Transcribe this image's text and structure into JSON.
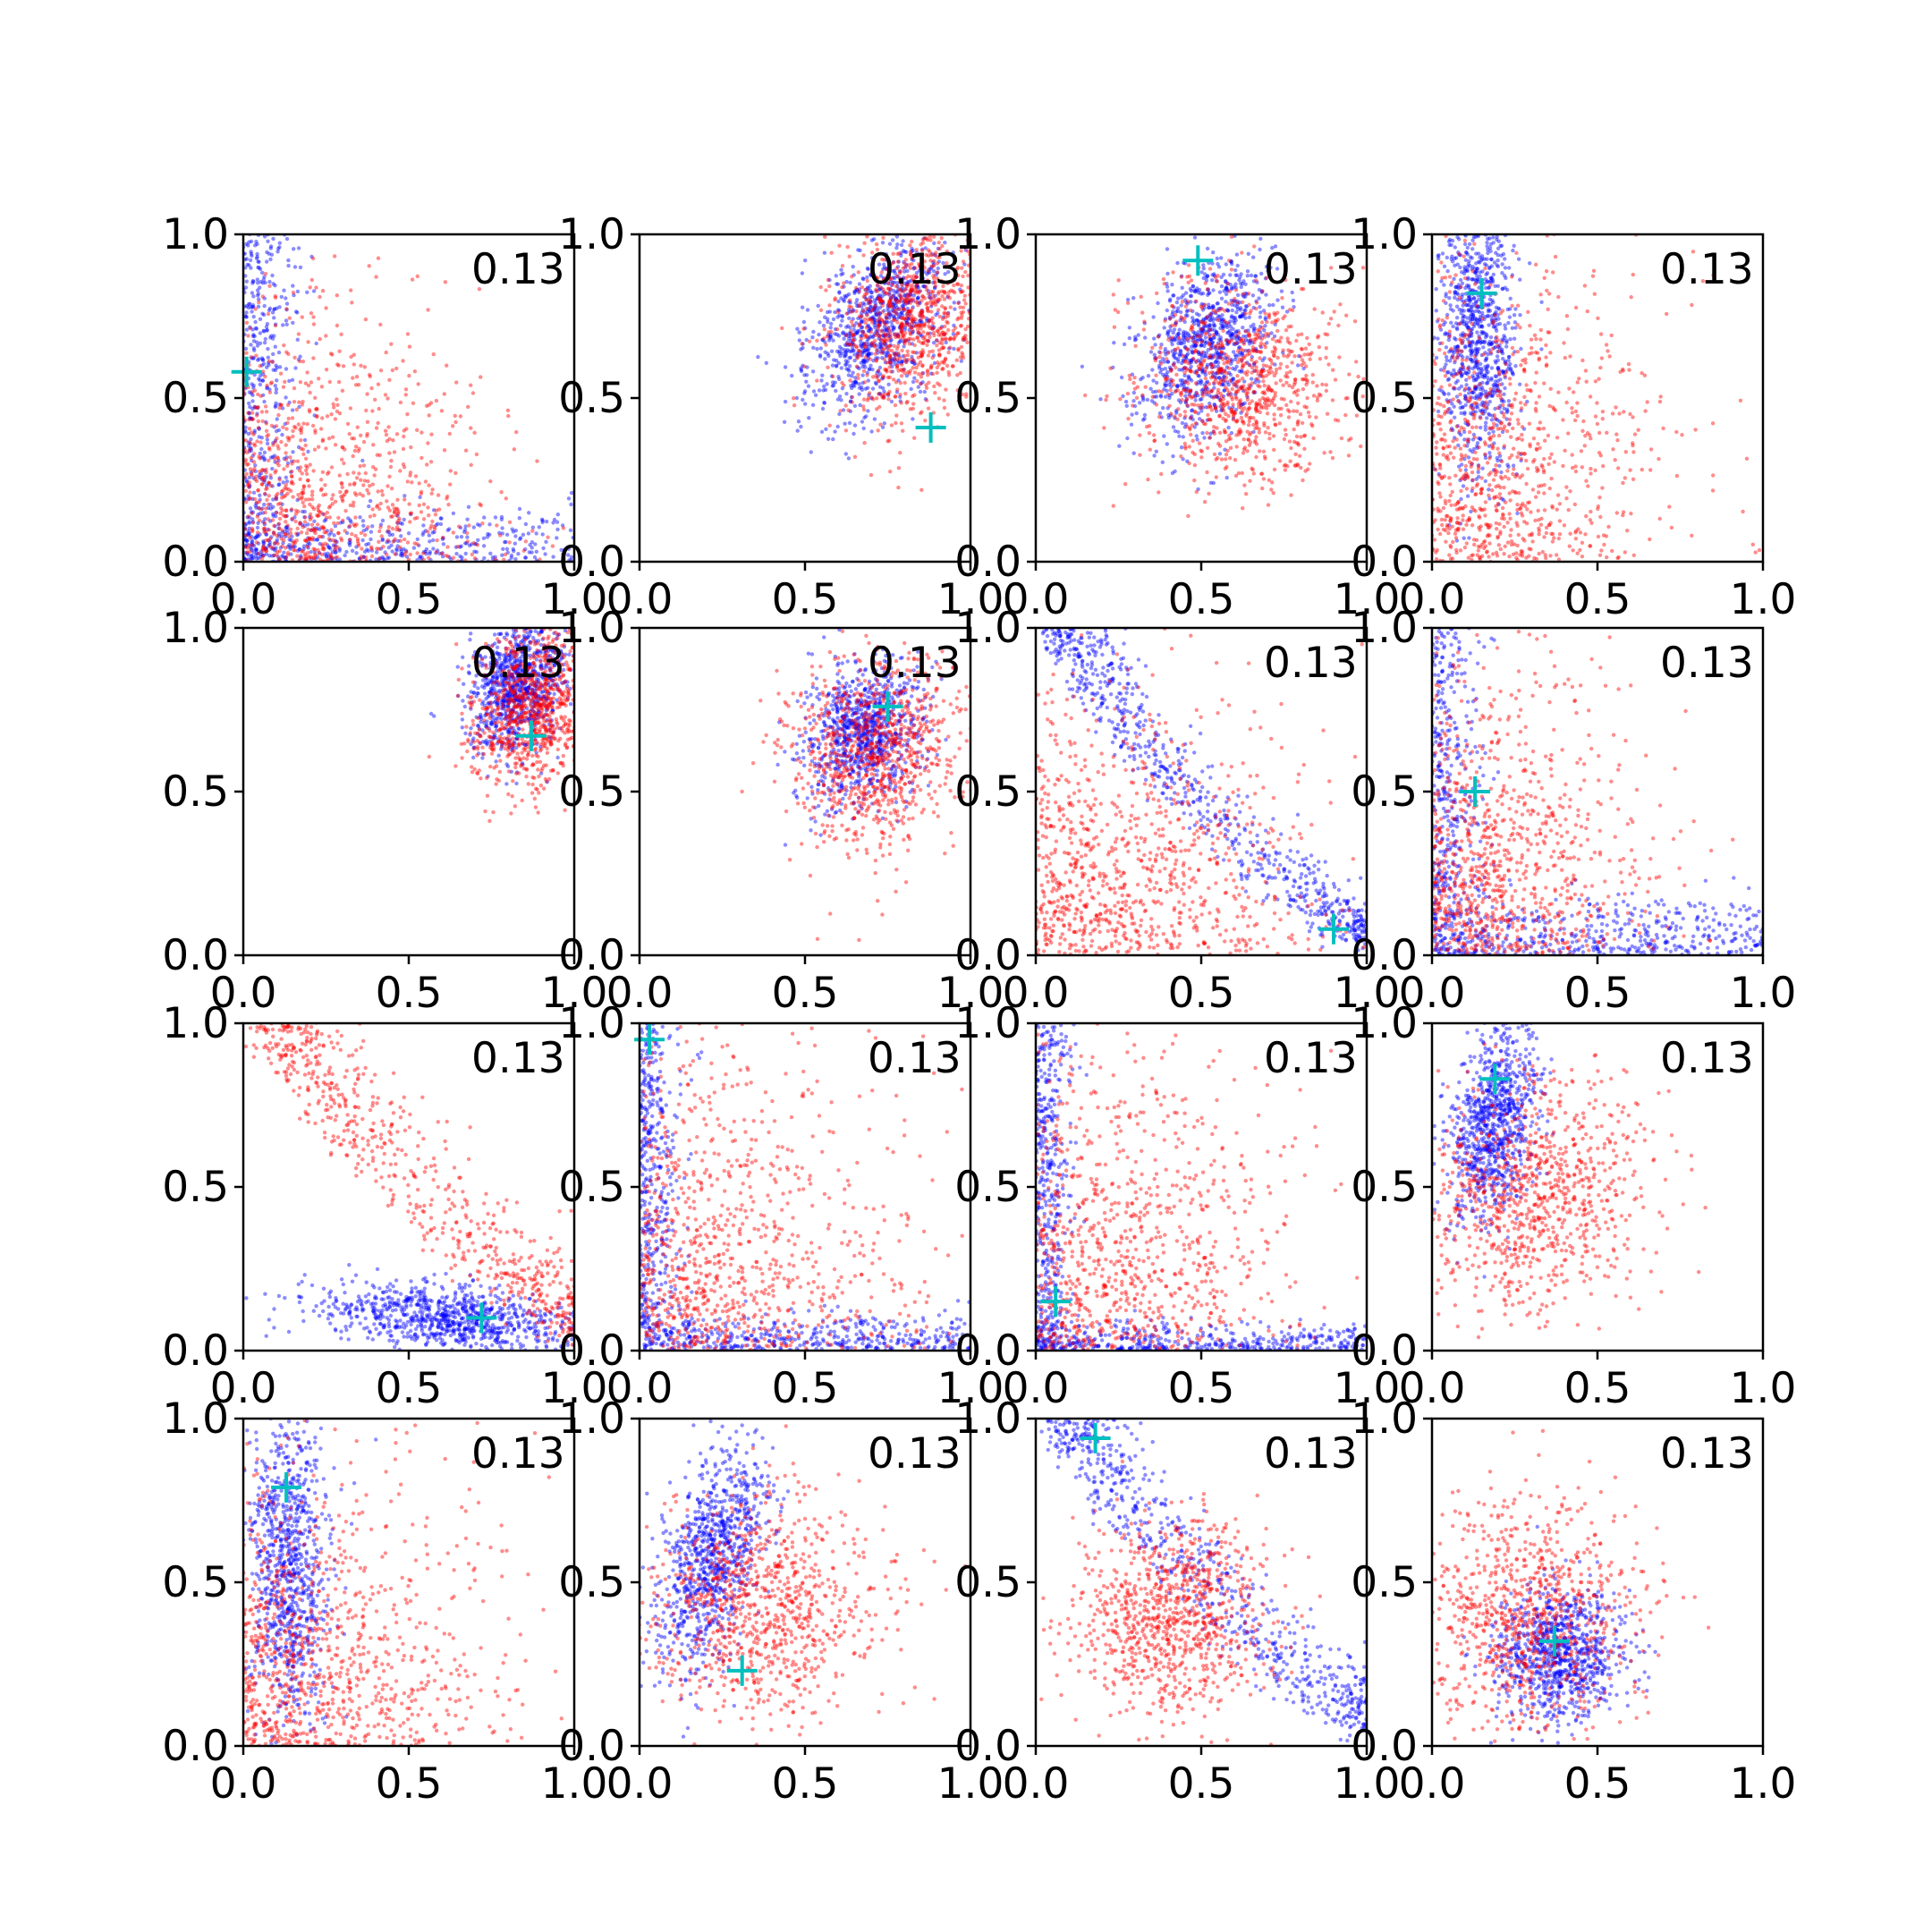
{
  "chart_data": {
    "type": "scatter",
    "layout": "4x4 grid of scatter panels",
    "xlim": [
      0,
      1
    ],
    "ylim": [
      0,
      1
    ],
    "xticks": [
      "0.0",
      "0.5",
      "1.0"
    ],
    "yticks": [
      "0.0",
      "0.5",
      "1.0"
    ],
    "annotation": "0.13",
    "colors": {
      "series_a": "#ff0000",
      "series_b": "#0000ff",
      "marker": "#00bfbf",
      "axes": "#000000"
    },
    "point_style": "small dots, alpha 0.4",
    "marker_style": "plus",
    "note": "each panel shows ~1000 red and ~1000 blue points; clouds summarized by center/spread",
    "panels": [
      {
        "marker": [
          0.01,
          0.58
        ],
        "red": {
          "shape": "corner",
          "spread": [
            0.35,
            0.35
          ]
        },
        "blue": {
          "shape": "axes",
          "spread": [
            0.08,
            0.08
          ]
        }
      },
      {
        "marker": [
          0.88,
          0.41
        ],
        "red": {
          "shape": "blob",
          "center": [
            0.82,
            0.73
          ],
          "spread": [
            0.11,
            0.14
          ],
          "tilt": -0.3
        },
        "blue": {
          "shape": "blob",
          "center": [
            0.72,
            0.72
          ],
          "spread": [
            0.09,
            0.15
          ],
          "tilt": -0.5
        }
      },
      {
        "marker": [
          0.49,
          0.92
        ],
        "red": {
          "shape": "blob",
          "center": [
            0.62,
            0.55
          ],
          "spread": [
            0.15,
            0.15
          ],
          "tilt": -0.6
        },
        "blue": {
          "shape": "blob",
          "center": [
            0.52,
            0.66
          ],
          "spread": [
            0.09,
            0.14
          ],
          "tilt": -0.4
        }
      },
      {
        "marker": [
          0.15,
          0.82
        ],
        "red": {
          "shape": "corner",
          "spread": [
            0.3,
            0.45
          ]
        },
        "blue": {
          "shape": "blob",
          "center": [
            0.14,
            0.68
          ],
          "spread": [
            0.06,
            0.22
          ],
          "tilt": 0
        }
      },
      {
        "marker": [
          0.87,
          0.67
        ],
        "red": {
          "shape": "blob",
          "center": [
            0.88,
            0.75
          ],
          "spread": [
            0.09,
            0.12
          ],
          "tilt": -0.3
        },
        "blue": {
          "shape": "blob",
          "center": [
            0.83,
            0.82
          ],
          "spread": [
            0.07,
            0.1
          ],
          "tilt": -0.3
        }
      },
      {
        "marker": [
          0.75,
          0.76
        ],
        "red": {
          "shape": "blob",
          "center": [
            0.72,
            0.62
          ],
          "spread": [
            0.13,
            0.15
          ],
          "tilt": -0.4
        },
        "blue": {
          "shape": "blob",
          "center": [
            0.68,
            0.68
          ],
          "spread": [
            0.08,
            0.11
          ],
          "tilt": -0.4
        }
      },
      {
        "marker": [
          0.9,
          0.08
        ],
        "red": {
          "shape": "corner",
          "spread": [
            0.4,
            0.35
          ]
        },
        "blue": {
          "shape": "arc",
          "spread": [
            0.35,
            0.2
          ]
        }
      },
      {
        "marker": [
          0.13,
          0.5
        ],
        "red": {
          "shape": "corner",
          "spread": [
            0.3,
            0.4
          ]
        },
        "blue": {
          "shape": "axes",
          "spread": [
            0.07,
            0.09
          ]
        }
      },
      {
        "marker": [
          0.72,
          0.1
        ],
        "red": {
          "shape": "arc",
          "spread": [
            0.45,
            0.45
          ]
        },
        "blue": {
          "shape": "blob",
          "center": [
            0.62,
            0.1
          ],
          "spread": [
            0.2,
            0.05
          ],
          "tilt": -0.1
        }
      },
      {
        "marker": [
          0.03,
          0.95
        ],
        "red": {
          "shape": "corner",
          "spread": [
            0.4,
            0.45
          ]
        },
        "blue": {
          "shape": "axes",
          "spread": [
            0.06,
            0.05
          ]
        }
      },
      {
        "marker": [
          0.06,
          0.15
        ],
        "red": {
          "shape": "corner",
          "spread": [
            0.38,
            0.45
          ]
        },
        "blue": {
          "shape": "axes",
          "spread": [
            0.05,
            0.04
          ]
        }
      },
      {
        "marker": [
          0.19,
          0.83
        ],
        "red": {
          "shape": "blob",
          "center": [
            0.3,
            0.45
          ],
          "spread": [
            0.16,
            0.18
          ],
          "tilt": -0.5
        },
        "blue": {
          "shape": "blob",
          "center": [
            0.19,
            0.7
          ],
          "spread": [
            0.06,
            0.16
          ],
          "tilt": -0.2
        }
      },
      {
        "marker": [
          0.13,
          0.79
        ],
        "red": {
          "shape": "corner",
          "spread": [
            0.35,
            0.4
          ]
        },
        "blue": {
          "shape": "blob",
          "center": [
            0.14,
            0.55
          ],
          "spread": [
            0.06,
            0.25
          ],
          "tilt": 0
        }
      },
      {
        "marker": [
          0.31,
          0.23
        ],
        "red": {
          "shape": "blob",
          "center": [
            0.38,
            0.42
          ],
          "spread": [
            0.18,
            0.17
          ],
          "tilt": -0.6
        },
        "blue": {
          "shape": "blob",
          "center": [
            0.22,
            0.58
          ],
          "spread": [
            0.07,
            0.18
          ],
          "tilt": -0.3
        }
      },
      {
        "marker": [
          0.18,
          0.94
        ],
        "red": {
          "shape": "blob",
          "center": [
            0.42,
            0.4
          ],
          "spread": [
            0.14,
            0.15
          ],
          "tilt": -0.3
        },
        "blue": {
          "shape": "arc",
          "spread": [
            0.35,
            0.4
          ]
        }
      },
      {
        "marker": [
          0.37,
          0.32
        ],
        "red": {
          "shape": "blob",
          "center": [
            0.28,
            0.38
          ],
          "spread": [
            0.17,
            0.17
          ],
          "tilt": -0.6
        },
        "blue": {
          "shape": "blob",
          "center": [
            0.38,
            0.28
          ],
          "spread": [
            0.1,
            0.1
          ],
          "tilt": -0.6
        }
      }
    ]
  }
}
